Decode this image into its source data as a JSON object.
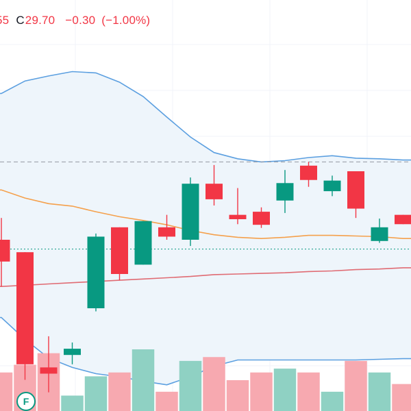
{
  "legend": {
    "prev_fragment": "55",
    "close_label": "C",
    "close_value": "29.70",
    "change": "−0.30",
    "change_pct": "(−1.00%)"
  },
  "colors": {
    "up": "#089981",
    "down": "#f23645",
    "volume_up": "#8fd1c3",
    "volume_down": "#f7a9b0",
    "bollinger_line": "#5b9fe0",
    "bollinger_fill": "#eef5fb",
    "ma_fast": "#f5a04b",
    "ma_slow": "#e06b73",
    "grid": "#f0f3fa",
    "price_line_dashed": "#9598a1",
    "price_line_dotted": "#089981",
    "event_marker": "#089981"
  },
  "event_marker": {
    "label": "F"
  },
  "chart_data": {
    "type": "candlestick",
    "ylim": [
      27.0,
      33.6
    ],
    "grid": true,
    "dashed_price_level": 31.0,
    "dotted_price_level": 29.6,
    "candles": [
      {
        "o": 29.75,
        "h": 30.1,
        "l": 29.0,
        "c": 29.4,
        "vol": 1.0
      },
      {
        "o": 29.55,
        "h": 29.55,
        "l": 27.5,
        "c": 27.75,
        "vol": 1.2
      },
      {
        "o": 27.7,
        "h": 28.2,
        "l": 27.3,
        "c": 27.6,
        "vol": 1.5
      },
      {
        "o": 27.9,
        "h": 28.1,
        "l": 27.75,
        "c": 28.0,
        "vol": 0.4
      },
      {
        "o": 28.65,
        "h": 29.85,
        "l": 28.6,
        "c": 29.8,
        "vol": 0.9
      },
      {
        "o": 29.95,
        "h": 29.95,
        "l": 29.1,
        "c": 29.2,
        "vol": 1.0
      },
      {
        "o": 29.35,
        "h": 30.05,
        "l": 29.35,
        "c": 30.05,
        "vol": 1.6
      },
      {
        "o": 29.95,
        "h": 30.15,
        "l": 29.75,
        "c": 29.8,
        "vol": 0.5
      },
      {
        "o": 29.75,
        "h": 30.75,
        "l": 29.65,
        "c": 30.65,
        "vol": 1.3
      },
      {
        "o": 30.65,
        "h": 30.95,
        "l": 30.3,
        "c": 30.4,
        "vol": 1.4
      },
      {
        "o": 30.15,
        "h": 30.58,
        "l": 30.0,
        "c": 30.08,
        "vol": 0.8
      },
      {
        "o": 30.2,
        "h": 30.27,
        "l": 29.94,
        "c": 29.99,
        "vol": 1.0
      },
      {
        "o": 30.38,
        "h": 30.87,
        "l": 30.18,
        "c": 30.66,
        "vol": 1.1
      },
      {
        "o": 30.94,
        "h": 31.0,
        "l": 30.6,
        "c": 30.71,
        "vol": 1.0
      },
      {
        "o": 30.53,
        "h": 30.78,
        "l": 30.45,
        "c": 30.7,
        "vol": 0.5
      },
      {
        "o": 30.85,
        "h": 30.85,
        "l": 30.1,
        "c": 30.25,
        "vol": 1.3
      },
      {
        "o": 29.73,
        "h": 30.09,
        "l": 29.7,
        "c": 29.95,
        "vol": 1.0
      },
      {
        "o": 30.15,
        "h": 30.15,
        "l": 30.0,
        "c": 30.0,
        "vol": 0.7
      }
    ],
    "bollinger_upper": [
      32.1,
      32.3,
      32.38,
      32.45,
      32.43,
      32.28,
      32.05,
      31.72,
      31.4,
      31.15,
      31.05,
      31.0,
      31.02,
      31.07,
      31.1,
      31.06,
      31.05,
      31.03
    ],
    "bollinger_lower": [
      28.5,
      28.15,
      27.85,
      27.7,
      27.6,
      27.55,
      27.48,
      27.42,
      27.55,
      27.72,
      27.82,
      27.82,
      27.82,
      27.82,
      27.82,
      27.82,
      27.83,
      27.84
    ],
    "ma_fast": [
      30.55,
      30.42,
      30.33,
      30.29,
      30.2,
      30.12,
      30.06,
      29.99,
      29.9,
      29.83,
      29.79,
      29.77,
      29.79,
      29.82,
      29.82,
      29.81,
      29.8,
      29.77
    ],
    "ma_slow": [
      29.0,
      29.02,
      29.04,
      29.06,
      29.08,
      29.1,
      29.12,
      29.14,
      29.16,
      29.19,
      29.2,
      29.21,
      29.22,
      29.24,
      29.25,
      29.27,
      29.28,
      29.3
    ]
  }
}
